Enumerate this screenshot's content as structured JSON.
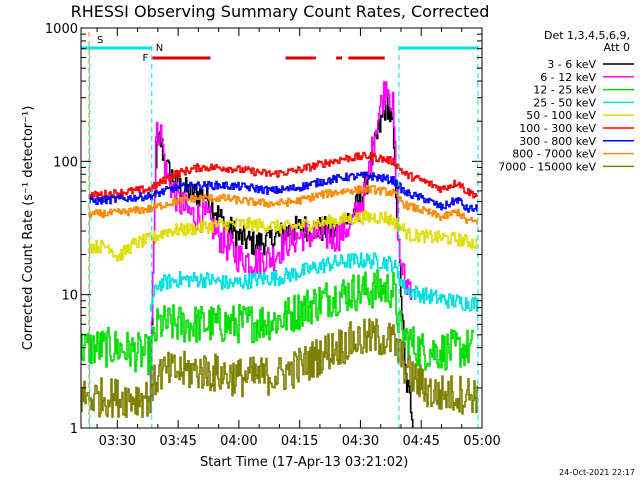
{
  "chart_data": {
    "type": "line",
    "title": "RHESSI Observing Summary Count Rates, Corrected",
    "xlabel": "Start Time (17-Apr-13 03:21:02)",
    "ylabel": "Corrected Count Rate (s⁻¹ detector⁻¹)",
    "x_ticks": [
      "03:30",
      "03:45",
      "04:00",
      "04:15",
      "04:30",
      "04:45",
      "05:00"
    ],
    "x_range": [
      "03:21:02",
      "05:00"
    ],
    "y_scale": "log",
    "y_ticks": [
      "1",
      "10",
      "100",
      "1000"
    ],
    "ylim": [
      1,
      1000
    ],
    "grid": false,
    "legend_position": "right",
    "legend_header": [
      "Det 1,3,4,5,6,9,",
      "Att 0"
    ],
    "date_stamp": "24-Oct-2021 22:17",
    "flags": {
      "saa_label": "S",
      "night_label": "N",
      "flare_label": "F",
      "saa_color": "#e08a00",
      "night_color": "#00e0e0",
      "flare_color": "#e00000",
      "saa_times": [
        "03:23:00"
      ],
      "night_bars": [
        [
          "03:21:02",
          "03:38:30"
        ],
        [
          "04:39:30",
          "04:59:00"
        ]
      ],
      "night_boundaries": [
        "03:23:10",
        "03:38:30",
        "04:39:30",
        "04:59:00"
      ],
      "flare_segments": [
        [
          "03:38:40",
          "03:53:00"
        ],
        [
          "04:11:30",
          "04:19:00"
        ],
        [
          "04:24:00",
          "04:25:30"
        ],
        [
          "04:27:00",
          "04:36:00"
        ]
      ]
    },
    "series": [
      {
        "name": "3 - 6 keV",
        "color": "#000000",
        "noise": 0.1,
        "points": [
          [
            "03:38:00",
            1.3
          ],
          [
            "03:39:30",
            110
          ],
          [
            "03:40:30",
            150
          ],
          [
            "03:42:00",
            90
          ],
          [
            "03:45:00",
            65
          ],
          [
            "03:48:00",
            58
          ],
          [
            "03:52:00",
            55
          ],
          [
            "03:56:00",
            35
          ],
          [
            "04:00:00",
            27
          ],
          [
            "04:04:00",
            24
          ],
          [
            "04:08:00",
            26
          ],
          [
            "04:12:00",
            30
          ],
          [
            "04:16:00",
            32
          ],
          [
            "04:20:00",
            31
          ],
          [
            "04:24:00",
            30
          ],
          [
            "04:28:00",
            40
          ],
          [
            "04:31:00",
            60
          ],
          [
            "04:34:00",
            150
          ],
          [
            "04:36:30",
            280
          ],
          [
            "04:38:00",
            170
          ],
          [
            "04:39:30",
            20
          ],
          [
            "04:41:00",
            2.5
          ],
          [
            "04:43:00",
            1.2
          ]
        ]
      },
      {
        "name": "6 - 12 keV",
        "color": "#ff00ff",
        "noise": 0.12,
        "points": [
          [
            "03:38:00",
            1.5
          ],
          [
            "03:39:30",
            150
          ],
          [
            "03:40:30",
            180
          ],
          [
            "03:42:00",
            80
          ],
          [
            "03:45:00",
            50
          ],
          [
            "03:48:00",
            40
          ],
          [
            "03:52:00",
            38
          ],
          [
            "03:56:00",
            25
          ],
          [
            "04:00:00",
            19
          ],
          [
            "04:04:00",
            18
          ],
          [
            "04:08:00",
            19
          ],
          [
            "04:12:00",
            25
          ],
          [
            "04:16:00",
            28
          ],
          [
            "04:20:00",
            28
          ],
          [
            "04:24:00",
            27
          ],
          [
            "04:28:00",
            35
          ],
          [
            "04:31:00",
            55
          ],
          [
            "04:34:00",
            200
          ],
          [
            "04:36:30",
            400
          ],
          [
            "04:38:00",
            250
          ],
          [
            "04:39:30",
            20
          ],
          [
            "04:41:00",
            12
          ],
          [
            "04:43:00",
            12
          ]
        ]
      },
      {
        "name": "12 - 25 keV",
        "color": "#00dd00",
        "noise": 0.15,
        "points": [
          [
            "03:21:02",
            4
          ],
          [
            "03:30:00",
            4
          ],
          [
            "03:38:00",
            3.5
          ],
          [
            "03:40:00",
            6
          ],
          [
            "03:45:00",
            6
          ],
          [
            "03:52:00",
            6
          ],
          [
            "03:58:00",
            6
          ],
          [
            "04:04:00",
            6.2
          ],
          [
            "04:10:00",
            6.5
          ],
          [
            "04:16:00",
            8
          ],
          [
            "04:22:00",
            9.5
          ],
          [
            "04:28:00",
            10.5
          ],
          [
            "04:34:00",
            11
          ],
          [
            "04:38:00",
            11
          ],
          [
            "04:40:00",
            5
          ],
          [
            "04:45:00",
            3.8
          ],
          [
            "04:50:00",
            3.8
          ],
          [
            "04:58:00",
            4
          ]
        ]
      },
      {
        "name": "25 - 50 keV",
        "color": "#00e0e0",
        "noise": 0.06,
        "points": [
          [
            "03:38:00",
            8
          ],
          [
            "03:40:00",
            12
          ],
          [
            "03:45:00",
            13
          ],
          [
            "03:52:00",
            13
          ],
          [
            "03:58:00",
            12
          ],
          [
            "04:04:00",
            13
          ],
          [
            "04:10:00",
            13.5
          ],
          [
            "04:16:00",
            15
          ],
          [
            "04:22:00",
            17
          ],
          [
            "04:28:00",
            18
          ],
          [
            "04:34:00",
            18
          ],
          [
            "04:38:00",
            17
          ],
          [
            "04:41:00",
            11
          ],
          [
            "04:45:00",
            10
          ],
          [
            "04:52:00",
            9
          ],
          [
            "04:59:00",
            8.5
          ]
        ]
      },
      {
        "name": "50 - 100 keV",
        "color": "#dddd00",
        "noise": 0.05,
        "points": [
          [
            "03:23:00",
            23
          ],
          [
            "03:28:00",
            23
          ],
          [
            "03:30:00",
            19
          ],
          [
            "03:34:00",
            24
          ],
          [
            "03:38:00",
            26
          ],
          [
            "03:42:00",
            30
          ],
          [
            "03:48:00",
            31
          ],
          [
            "03:54:00",
            33
          ],
          [
            "04:00:00",
            34
          ],
          [
            "04:06:00",
            33
          ],
          [
            "04:12:00",
            32
          ],
          [
            "04:18:00",
            34
          ],
          [
            "04:24:00",
            36
          ],
          [
            "04:30:00",
            38
          ],
          [
            "04:36:00",
            38
          ],
          [
            "04:39:00",
            34
          ],
          [
            "04:42:00",
            28
          ],
          [
            "04:48:00",
            27
          ],
          [
            "04:54:00",
            26
          ],
          [
            "04:59:00",
            24
          ]
        ]
      },
      {
        "name": "100 - 300 keV",
        "color": "#ff0000",
        "noise": 0.03,
        "points": [
          [
            "03:23:00",
            55
          ],
          [
            "03:30:00",
            58
          ],
          [
            "03:38:00",
            62
          ],
          [
            "03:44:00",
            80
          ],
          [
            "03:50:00",
            90
          ],
          [
            "03:56:00",
            90
          ],
          [
            "04:02:00",
            85
          ],
          [
            "04:08:00",
            80
          ],
          [
            "04:14:00",
            85
          ],
          [
            "04:20:00",
            95
          ],
          [
            "04:26:00",
            105
          ],
          [
            "04:32:00",
            110
          ],
          [
            "04:38:00",
            100
          ],
          [
            "04:41:00",
            80
          ],
          [
            "04:46:00",
            70
          ],
          [
            "04:50:00",
            62
          ],
          [
            "04:54:00",
            70
          ],
          [
            "04:56:00",
            60
          ],
          [
            "04:59:00",
            55
          ]
        ]
      },
      {
        "name": "300 - 800 keV",
        "color": "#0000ff",
        "noise": 0.03,
        "points": [
          [
            "03:23:00",
            50
          ],
          [
            "03:30:00",
            52
          ],
          [
            "03:38:00",
            55
          ],
          [
            "03:44:00",
            63
          ],
          [
            "03:50:00",
            66
          ],
          [
            "03:56:00",
            66
          ],
          [
            "04:02:00",
            64
          ],
          [
            "04:08:00",
            60
          ],
          [
            "04:14:00",
            63
          ],
          [
            "04:20:00",
            70
          ],
          [
            "04:26:00",
            76
          ],
          [
            "04:32:00",
            78
          ],
          [
            "04:38:00",
            72
          ],
          [
            "04:41:00",
            58
          ],
          [
            "04:46:00",
            52
          ],
          [
            "04:50:00",
            45
          ],
          [
            "04:54:00",
            52
          ],
          [
            "04:56:00",
            44
          ],
          [
            "04:59:00",
            44
          ]
        ]
      },
      {
        "name": "800 - 7000 keV",
        "color": "#ff8800",
        "noise": 0.03,
        "points": [
          [
            "03:23:00",
            40
          ],
          [
            "03:30:00",
            41
          ],
          [
            "03:38:00",
            44
          ],
          [
            "03:44:00",
            50
          ],
          [
            "03:50:00",
            53
          ],
          [
            "03:56:00",
            53
          ],
          [
            "04:02:00",
            50
          ],
          [
            "04:08:00",
            48
          ],
          [
            "04:14:00",
            50
          ],
          [
            "04:20:00",
            56
          ],
          [
            "04:26:00",
            60
          ],
          [
            "04:32:00",
            62
          ],
          [
            "04:38:00",
            58
          ],
          [
            "04:41:00",
            47
          ],
          [
            "04:46:00",
            42
          ],
          [
            "04:50:00",
            38
          ],
          [
            "04:54:00",
            42
          ],
          [
            "04:56:00",
            36
          ],
          [
            "04:59:00",
            35
          ]
        ]
      },
      {
        "name": "7000 - 15000 keV",
        "color": "#808000",
        "noise": 0.15,
        "points": [
          [
            "03:21:02",
            1.7
          ],
          [
            "03:38:00",
            1.7
          ],
          [
            "03:40:00",
            2.6
          ],
          [
            "03:50:00",
            2.7
          ],
          [
            "04:00:00",
            2.4
          ],
          [
            "04:10:00",
            2.5
          ],
          [
            "04:16:00",
            3
          ],
          [
            "04:22:00",
            3.8
          ],
          [
            "04:28:00",
            4.5
          ],
          [
            "04:34:00",
            4.8
          ],
          [
            "04:38:00",
            4.5
          ],
          [
            "04:42:00",
            2.5
          ],
          [
            "04:48:00",
            1.8
          ],
          [
            "04:59:00",
            1.8
          ]
        ]
      }
    ]
  }
}
